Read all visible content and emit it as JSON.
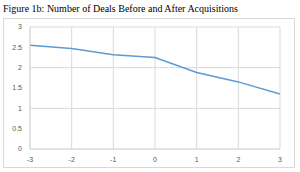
{
  "chart_data": {
    "type": "line",
    "title": "Figure 1b: Number of Deals Before and After Acquisitions",
    "x": [
      -3,
      -2,
      -1,
      0,
      1,
      2,
      3
    ],
    "values": [
      2.55,
      2.47,
      2.32,
      2.25,
      1.88,
      1.65,
      1.35
    ],
    "color": "#5b9bd5",
    "xlim": [
      -3,
      3
    ],
    "xticks": [
      -3,
      -2,
      -1,
      0,
      1,
      2,
      3
    ],
    "ylim": [
      0,
      3
    ],
    "yticks": [
      0,
      0.5,
      1,
      1.5,
      2,
      2.5,
      3
    ],
    "grid": true
  }
}
